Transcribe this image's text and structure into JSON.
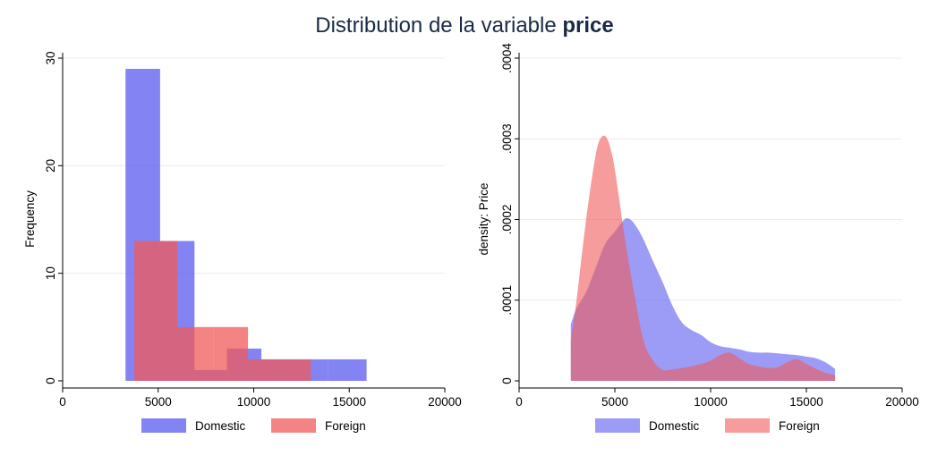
{
  "title": {
    "prefix": "Distribution de la variable ",
    "variable": "price"
  },
  "colors": {
    "domestic": "#5a5af0",
    "foreign": "#f05a5a",
    "grid": "#ececec",
    "title": "#1a2b45"
  },
  "chart_data": [
    {
      "type": "bar",
      "subtype": "histogram",
      "ylabel": "Frequency",
      "xlim": [
        0,
        20000
      ],
      "ylim": [
        0,
        30
      ],
      "xticks": [
        0,
        5000,
        10000,
        15000,
        20000
      ],
      "yticks": [
        0,
        10,
        20,
        30
      ],
      "grid": true,
      "legend": "bottom",
      "series": [
        {
          "name": "Domestic",
          "bins": [
            {
              "x0": 3291,
              "x1": 5100,
              "value": 29
            },
            {
              "x0": 5100,
              "x1": 6900,
              "value": 13
            },
            {
              "x0": 6900,
              "x1": 8600,
              "value": 1
            },
            {
              "x0": 8600,
              "x1": 10400,
              "value": 3
            },
            {
              "x0": 10400,
              "x1": 12100,
              "value": 2
            },
            {
              "x0": 12100,
              "x1": 13900,
              "value": 2
            },
            {
              "x0": 13900,
              "x1": 15906,
              "value": 2
            }
          ]
        },
        {
          "name": "Foreign",
          "bins": [
            {
              "x0": 3748,
              "x1": 6000,
              "value": 13
            },
            {
              "x0": 6000,
              "x1": 7900,
              "value": 5
            },
            {
              "x0": 7900,
              "x1": 9700,
              "value": 5
            },
            {
              "x0": 9700,
              "x1": 11400,
              "value": 2
            },
            {
              "x0": 11400,
              "x1": 12990,
              "value": 2
            }
          ]
        }
      ]
    },
    {
      "type": "area",
      "subtype": "density",
      "ylabel": "density: Price",
      "xlim": [
        0,
        20000
      ],
      "ylim": [
        0,
        0.0004
      ],
      "xticks": [
        0,
        5000,
        10000,
        15000,
        20000
      ],
      "yticks": [
        0,
        0.0001,
        0.0002,
        0.0003,
        0.0004
      ],
      "ytick_labels": [
        "0",
        ".0001",
        ".0002",
        ".0003",
        ".0004"
      ],
      "grid": true,
      "legend": "bottom",
      "series": [
        {
          "name": "Domestic",
          "x": [
            2700,
            3000,
            3500,
            4000,
            4500,
            5000,
            5500,
            5800,
            6100,
            6500,
            7000,
            7500,
            8000,
            8500,
            9000,
            9500,
            10000,
            10500,
            11000,
            11500,
            12000,
            12500,
            13000,
            13500,
            14000,
            14500,
            15000,
            15500,
            16000,
            16500
          ],
          "y": [
            7e-05,
            9e-05,
            0.00011,
            0.00014,
            0.00017,
            0.000185,
            0.0002,
            0.0002,
            0.000192,
            0.000175,
            0.000148,
            0.000122,
            9.35e-05,
            7.25e-05,
            6.3e-05,
            5.7e-05,
            4.8e-05,
            4.3e-05,
            4.1e-05,
            3.9e-05,
            3.6e-05,
            3.5e-05,
            3.5e-05,
            3.4e-05,
            3.3e-05,
            3.2e-05,
            3e-05,
            2.8e-05,
            2.3e-05,
            1.5e-05
          ]
        },
        {
          "name": "Foreign",
          "x": [
            2700,
            3000,
            3500,
            4000,
            4300,
            4600,
            4900,
            5200,
            5500,
            6000,
            6500,
            7000,
            7500,
            8000,
            8500,
            9000,
            9500,
            10000,
            10500,
            11000,
            11500,
            12000,
            12500,
            13000,
            13500,
            14000,
            14500,
            15000,
            15500,
            16000,
            16500
          ],
          "y": [
            5e-05,
            0.0001,
            0.0002,
            0.00028,
            0.000302,
            0.0003,
            0.000275,
            0.00023,
            0.00018,
            0.00011,
            5e-05,
            2.5e-05,
            1.35e-05,
            1.4e-05,
            1.6e-05,
            1.8e-05,
            2.1e-05,
            2.5e-05,
            3.2e-05,
            3.5e-05,
            2.8e-05,
            2.1e-05,
            1.8e-05,
            1.6e-05,
            1.7e-05,
            2.3e-05,
            2.7e-05,
            2.1e-05,
            1.5e-05,
            1e-05,
            7e-06
          ]
        }
      ]
    }
  ]
}
